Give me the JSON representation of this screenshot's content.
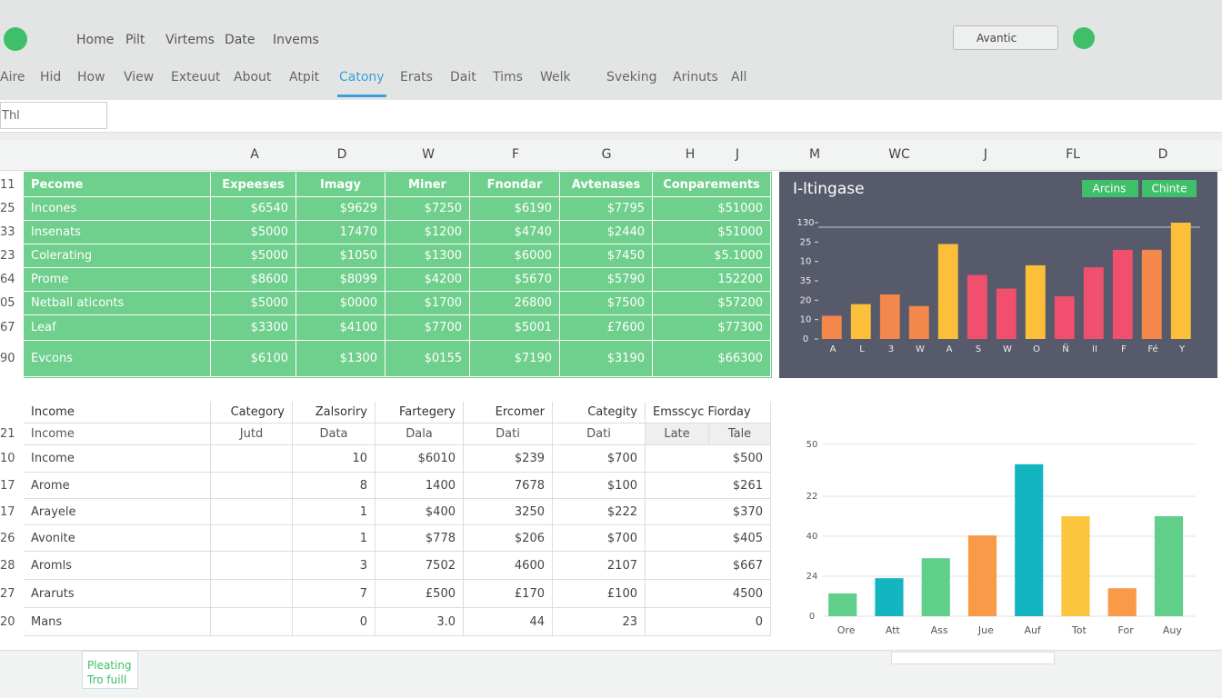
{
  "titlebar": {
    "items": [
      "Home",
      "Pilt",
      "Virtems",
      "Date",
      "Invems"
    ],
    "search": "Avantic"
  },
  "tabs": [
    "Aire",
    "Hid",
    "How",
    "View",
    "Exteuut",
    "About",
    "Atpit",
    "Catony",
    "Erats",
    "Dait",
    "Tims",
    "Welk",
    "Sveking",
    "Arinuts",
    "All"
  ],
  "namebox": "Thl",
  "columns": [
    "A",
    "D",
    "W",
    "F",
    "G",
    "H",
    "J",
    "M",
    "WC",
    "J",
    "FL",
    "D"
  ],
  "green_table": {
    "num": "11",
    "header": [
      "Pecome",
      "Expeeses",
      "Imagy",
      "Miner",
      "Fnondar",
      "Avtenases",
      "Conparements"
    ],
    "rows": [
      {
        "num": "25",
        "cells": [
          "Incones",
          "$6540",
          "$9629",
          "$7250",
          "$6190",
          "$7795",
          "$51000"
        ]
      },
      {
        "num": "33",
        "cells": [
          "Insenats",
          "$5000",
          "17470",
          "$1200",
          "$4740",
          "$2440",
          "$51000"
        ]
      },
      {
        "num": "23",
        "cells": [
          "Colerating",
          "$5000",
          "$1050",
          "$1300",
          "$6000",
          "$7450",
          "$5.1000"
        ]
      },
      {
        "num": "64",
        "cells": [
          "Prome",
          "$8600",
          "$8099",
          "$4200",
          "$5670",
          "$5790",
          "152200"
        ]
      },
      {
        "num": "05",
        "cells": [
          "Netball aticonts",
          "$5000",
          "$0000",
          "$1700",
          "26800",
          "$7500",
          "$57200"
        ]
      },
      {
        "num": "67",
        "cells": [
          "Leaf",
          "$3300",
          "$4100",
          "$7700",
          "$5001",
          "£7600",
          "$77300"
        ]
      },
      {
        "num": "90",
        "cells": [
          "Evcons",
          "$6100",
          "$1300",
          "$0155",
          "$7190",
          "$3190",
          "$66300"
        ]
      }
    ]
  },
  "lower_table": {
    "header": [
      "Income",
      "Category",
      "Zalsoriry",
      "Fartegery",
      "Ercomer",
      "Categity",
      "Emsscyc Fiorday"
    ],
    "subheader_num": "21",
    "subheader": [
      "Income",
      "Jutd",
      "Data",
      "Dala",
      "Dati",
      "Dati",
      "Late",
      "Tale"
    ],
    "rows": [
      {
        "num": "10",
        "cells": [
          "Income",
          "10",
          "$6010",
          "$239",
          "$700",
          "$500"
        ]
      },
      {
        "num": "17",
        "cells": [
          "Arome",
          "8",
          "1400",
          "7678",
          "$100",
          "$261"
        ]
      },
      {
        "num": "17",
        "cells": [
          "Arayele",
          "1",
          "$400",
          "3250",
          "$222",
          "$370"
        ]
      },
      {
        "num": "26",
        "cells": [
          "Avonite",
          "1",
          "$778",
          "$206",
          "$700",
          "$405"
        ]
      },
      {
        "num": "28",
        "cells": [
          "Aromls",
          "3",
          "7502",
          "4600",
          "2107",
          "$667"
        ]
      },
      {
        "num": "27",
        "cells": [
          "Araruts",
          "7",
          "£500",
          "£170",
          "£100",
          "4500"
        ]
      },
      {
        "num": "20",
        "cells": [
          "Mans",
          "0",
          "3.0",
          "44",
          "23",
          "0"
        ]
      }
    ]
  },
  "charts": [
    {
      "type": "bar",
      "title": "I-ltingase",
      "buttons": [
        "Arcins",
        "Chinte"
      ],
      "categories": [
        "A",
        "L",
        "3",
        "W",
        "A",
        "S",
        "W",
        "O",
        "Ñ",
        "II",
        "F",
        "Fé",
        "Y"
      ],
      "values": [
        12,
        18,
        23,
        17,
        49,
        33,
        26,
        38,
        22,
        37,
        46,
        46,
        60
      ],
      "colors": [
        "#f4874b",
        "#fbbf3a",
        "#f4874b",
        "#f4874b",
        "#fbbf3a",
        "#f0506e",
        "#f0506e",
        "#fbbf3a",
        "#f0506e",
        "#f0506e",
        "#f0506e",
        "#f4874b",
        "#fbbf3a"
      ],
      "ylim": [
        0,
        60
      ],
      "yticks": [
        0,
        {
          "value": 10,
          "label": "10"
        },
        {
          "value": 20,
          "label": "20"
        },
        {
          "value": 30,
          "label": "35"
        },
        {
          "value": 40,
          "label": "10"
        },
        {
          "value": 50,
          "label": "25"
        },
        {
          "value": 60,
          "label": "130"
        }
      ],
      "grid": false
    },
    {
      "type": "bar",
      "categories": [
        "Ore",
        "Att",
        "Ass",
        "Jue",
        "Auf",
        "Tot",
        "For",
        "Auy"
      ],
      "values": [
        5.7,
        9.5,
        14.5,
        20.2,
        38,
        25,
        7,
        25
      ],
      "colors": [
        "#5fcf8a",
        "#12b5c0",
        "#5fcf8a",
        "#f89a48",
        "#12b5c0",
        "#fbc63d",
        "#f89a48",
        "#5fcf8a"
      ],
      "ylim": [
        0,
        45
      ],
      "yticks": [
        0,
        {
          "value": 10,
          "label": "24"
        },
        {
          "value": 20,
          "label": "40"
        },
        {
          "value": 30,
          "label": "22"
        },
        {
          "value": 43,
          "label": "50"
        }
      ],
      "grid": true
    }
  ],
  "sheet_tab": "Pleating Tro fuill"
}
